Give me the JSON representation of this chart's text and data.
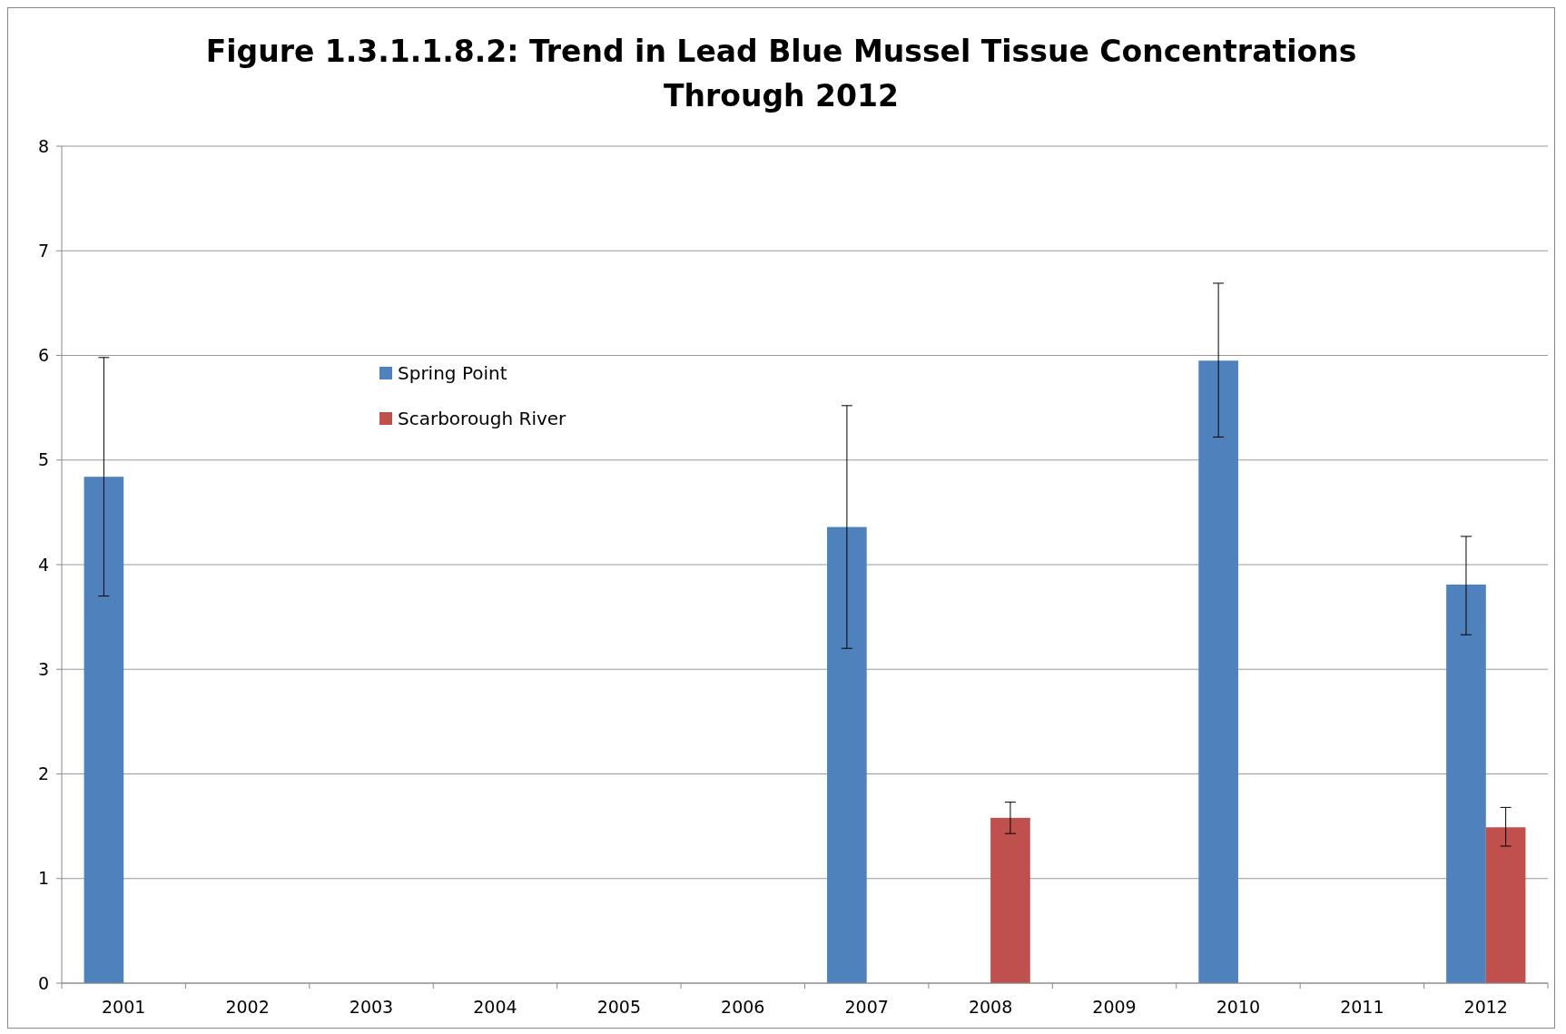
{
  "chart_data": {
    "type": "bar",
    "title": "Figure 1.3.1.1.8.2:  Trend in Lead Blue Mussel Tissue Concentrations Through 2012",
    "categories": [
      "2001",
      "2002",
      "2003",
      "2004",
      "2005",
      "2006",
      "2007",
      "2008",
      "2009",
      "2010",
      "2011",
      "2012"
    ],
    "series": [
      {
        "name": "Spring Point",
        "color": "#4f81bd",
        "values": [
          4.84,
          null,
          null,
          null,
          null,
          null,
          4.36,
          null,
          null,
          5.95,
          null,
          3.81
        ],
        "errors": [
          [
            3.7,
            5.98
          ],
          null,
          null,
          null,
          null,
          null,
          [
            3.2,
            5.52
          ],
          null,
          null,
          [
            5.22,
            6.69
          ],
          null,
          [
            3.33,
            4.27
          ]
        ]
      },
      {
        "name": "Scarborough River",
        "color": "#c0504d",
        "values": [
          null,
          null,
          null,
          null,
          null,
          null,
          null,
          1.58,
          null,
          null,
          null,
          1.49
        ],
        "errors": [
          null,
          null,
          null,
          null,
          null,
          null,
          null,
          [
            1.43,
            1.73
          ],
          null,
          null,
          null,
          [
            1.31,
            1.68
          ]
        ]
      }
    ],
    "ylim": [
      0,
      8
    ],
    "yticks": [
      0,
      1,
      2,
      3,
      4,
      5,
      6,
      7,
      8
    ],
    "grid": "y",
    "legend": "top left"
  }
}
